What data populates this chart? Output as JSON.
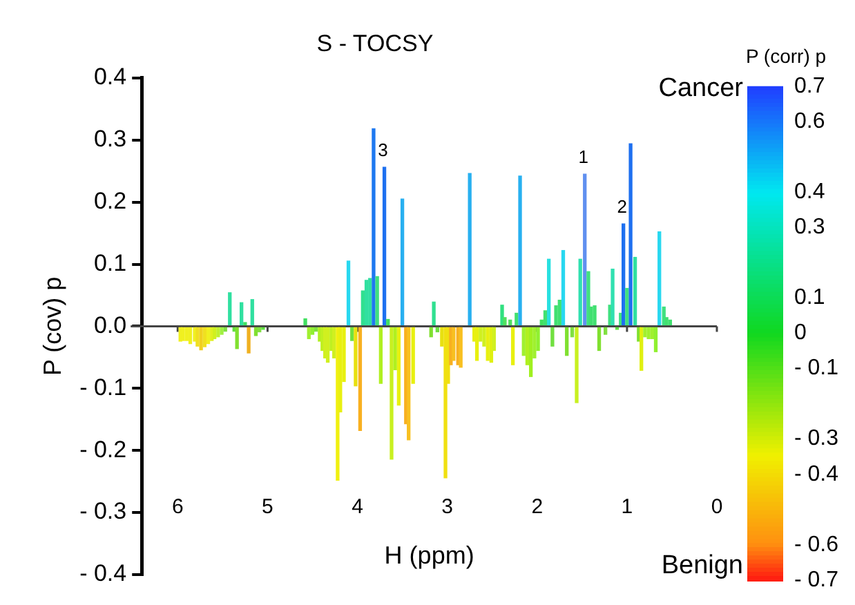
{
  "chart_data": {
    "type": "bar",
    "title": "S - TOCSY",
    "xlabel": "H (ppm)",
    "ylabel": "P (cov) p",
    "clabel": "P (corr) p",
    "xlim": [
      6.4,
      0
    ],
    "xticks": [
      6,
      5,
      4,
      3,
      2,
      1,
      0
    ],
    "ylim": [
      -0.4,
      0.4
    ],
    "yticks": [
      {
        "value": -0.4,
        "label": "- 0.4"
      },
      {
        "value": -0.3,
        "label": "- 0.3"
      },
      {
        "value": -0.2,
        "label": "- 0.2"
      },
      {
        "value": -0.1,
        "label": "- 0.1"
      },
      {
        "value": 0,
        "label": "0.0"
      },
      0.1,
      0.2,
      0.3,
      0.4
    ],
    "clim": [
      -0.7,
      0.7
    ],
    "cticks": [
      {
        "value": 0.7,
        "label": "0.7"
      },
      {
        "value": 0.6,
        "label": "0.6"
      },
      {
        "value": 0.4,
        "label": "0.4"
      },
      {
        "value": 0.3,
        "label": "0.3"
      },
      {
        "value": 0.1,
        "label": "0.1"
      },
      {
        "value": 0,
        "label": "0"
      },
      {
        "value": -0.1,
        "label": "- 0.1"
      },
      {
        "value": -0.3,
        "label": "- 0.3"
      },
      {
        "value": -0.4,
        "label": "- 0.4"
      },
      {
        "value": -0.6,
        "label": "- 0.6"
      },
      {
        "value": -0.7,
        "label": "- 0.7"
      }
    ],
    "x": [
      5.97,
      5.94,
      5.9,
      5.86,
      5.81,
      5.78,
      5.74,
      5.7,
      5.66,
      5.62,
      5.59,
      5.55,
      5.51,
      5.47,
      5.42,
      5.37,
      5.34,
      5.29,
      5.25,
      5.21,
      5.17,
      5.13,
      5.09,
      5.05,
      4.58,
      4.54,
      4.5,
      4.46,
      4.42,
      4.39,
      4.36,
      4.33,
      4.29,
      4.26,
      4.22,
      4.19,
      4.15,
      4.1,
      4.06,
      4.02,
      3.97,
      3.94,
      3.9,
      3.86,
      3.82,
      3.78,
      3.74,
      3.7,
      3.66,
      3.62,
      3.58,
      3.54,
      3.5,
      3.46,
      3.43,
      3.38,
      3.18,
      3.15,
      3.11,
      3.06,
      3.02,
      2.99,
      2.96,
      2.93,
      2.88,
      2.85,
      2.75,
      2.7,
      2.67,
      2.63,
      2.59,
      2.55,
      2.51,
      2.48,
      2.39,
      2.36,
      2.3,
      2.27,
      2.23,
      2.19,
      2.15,
      2.11,
      2.07,
      2.03,
      1.99,
      1.95,
      1.91,
      1.87,
      1.83,
      1.79,
      1.75,
      1.71,
      1.67,
      1.61,
      1.56,
      1.52,
      1.47,
      1.43,
      1.4,
      1.36,
      1.31,
      1.24,
      1.19,
      1.16,
      1.11,
      1.07,
      1.04,
      1.0,
      0.96,
      0.91,
      0.87,
      0.84,
      0.8,
      0.76,
      0.72,
      0.68,
      0.64,
      0.59,
      0.56,
      0.52
    ],
    "values": [
      -0.024,
      -0.023,
      -0.023,
      -0.028,
      -0.024,
      -0.032,
      -0.038,
      -0.033,
      -0.028,
      -0.023,
      -0.02,
      -0.017,
      -0.013,
      -0.008,
      0.054,
      -0.008,
      -0.036,
      0.038,
      0.006,
      -0.043,
      0.043,
      -0.015,
      -0.009,
      -0.005,
      0.012,
      -0.02,
      -0.013,
      -0.008,
      -0.024,
      -0.039,
      -0.051,
      -0.058,
      -0.039,
      -0.051,
      -0.248,
      -0.138,
      -0.089,
      0.105,
      -0.023,
      -0.096,
      -0.168,
      0.057,
      0.074,
      0.077,
      0.318,
      0.08,
      -0.092,
      0.256,
      0.011,
      -0.214,
      -0.07,
      -0.127,
      0.205,
      -0.157,
      -0.183,
      -0.092,
      -0.017,
      0.039,
      -0.009,
      -0.032,
      -0.244,
      -0.092,
      -0.062,
      -0.055,
      -0.062,
      -0.066,
      0.246,
      -0.024,
      -0.055,
      -0.024,
      -0.032,
      -0.055,
      -0.058,
      -0.039,
      0.034,
      0.014,
      0.01,
      -0.062,
      0.021,
      0.242,
      -0.047,
      -0.062,
      -0.081,
      -0.051,
      -0.039,
      0.01,
      0.025,
      0.108,
      -0.032,
      0.033,
      0.042,
      0.122,
      -0.047,
      -0.017,
      -0.123,
      0.108,
      0.245,
      0.088,
      0.031,
      0.033,
      -0.039,
      -0.013,
      0.034,
      0.092,
      -0.005,
      0.021,
      0.165,
      0.061,
      0.294,
      0.111,
      -0.024,
      -0.071,
      -0.017,
      -0.02,
      -0.02,
      -0.041,
      0.152,
      0.031,
      0.014,
      0.01
    ],
    "colors": [
      "#f0f020",
      "#f0f020",
      "#f0f020",
      "#f0f020",
      "#f0f020",
      "#f0e020",
      "#f0d020",
      "#f0e020",
      "#f0f020",
      "#e0f020",
      "#d0f020",
      "#c0f030",
      "#a0f040",
      "#80e040",
      "#30e0a0",
      "#60e040",
      "#80e030",
      "#30e0a0",
      "#40e060",
      "#f0b020",
      "#30e0a0",
      "#80e030",
      "#80e040",
      "#60e040",
      "#40e060",
      "#a0f030",
      "#90f030",
      "#80e040",
      "#b0f020",
      "#c0f020",
      "#d0f020",
      "#d0f020",
      "#c0f020",
      "#d0f020",
      "#f0f010",
      "#e8f010",
      "#e8f010",
      "#28d8f0",
      "#70e040",
      "#e8e010",
      "#f8b020",
      "#30e090",
      "#30e0a0",
      "#30e0a0",
      "#1e78f0",
      "#40e080",
      "#b0f020",
      "#1e70f0",
      "#40e060",
      "#c8f020",
      "#b0f020",
      "#e8f010",
      "#28b0f0",
      "#f8b020",
      "#f8c020",
      "#e8f010",
      "#80e030",
      "#30e090",
      "#70e040",
      "#e8e010",
      "#f0e010",
      "#f0e010",
      "#f8b020",
      "#f8c020",
      "#f8b020",
      "#f8c020",
      "#28b0f0",
      "#e8f010",
      "#e8f010",
      "#d0f020",
      "#d0f020",
      "#e8f010",
      "#e0f010",
      "#d0f020",
      "#30e080",
      "#50e060",
      "#50e060",
      "#e8f010",
      "#40e070",
      "#28b0f0",
      "#a0f030",
      "#b0f020",
      "#a0f020",
      "#a0f030",
      "#90f030",
      "#40e060",
      "#40e070",
      "#28e0e0",
      "#70e040",
      "#40e070",
      "#40e070",
      "#28d8f0",
      "#80e030",
      "#80e040",
      "#c8f020",
      "#30e0b0",
      "#6090f0",
      "#40e080",
      "#40e070",
      "#40e070",
      "#80e030",
      "#80e040",
      "#40e080",
      "#30e0b0",
      "#60e040",
      "#40e080",
      "#1e70f0",
      "#40e080",
      "#1e70f0",
      "#30e0a0",
      "#80e030",
      "#e0f010",
      "#a0f030",
      "#a0f030",
      "#a0f030",
      "#90f030",
      "#28d8f0",
      "#40e080",
      "#40e070",
      "#40e070"
    ],
    "annotations": [
      {
        "text": "3",
        "x": 3.7,
        "y": 0.256
      },
      {
        "text": "1",
        "x": 1.47,
        "y": 0.245
      },
      {
        "text": "2",
        "x": 1.04,
        "y": 0.165
      },
      "Cancer",
      "Benign"
    ]
  }
}
